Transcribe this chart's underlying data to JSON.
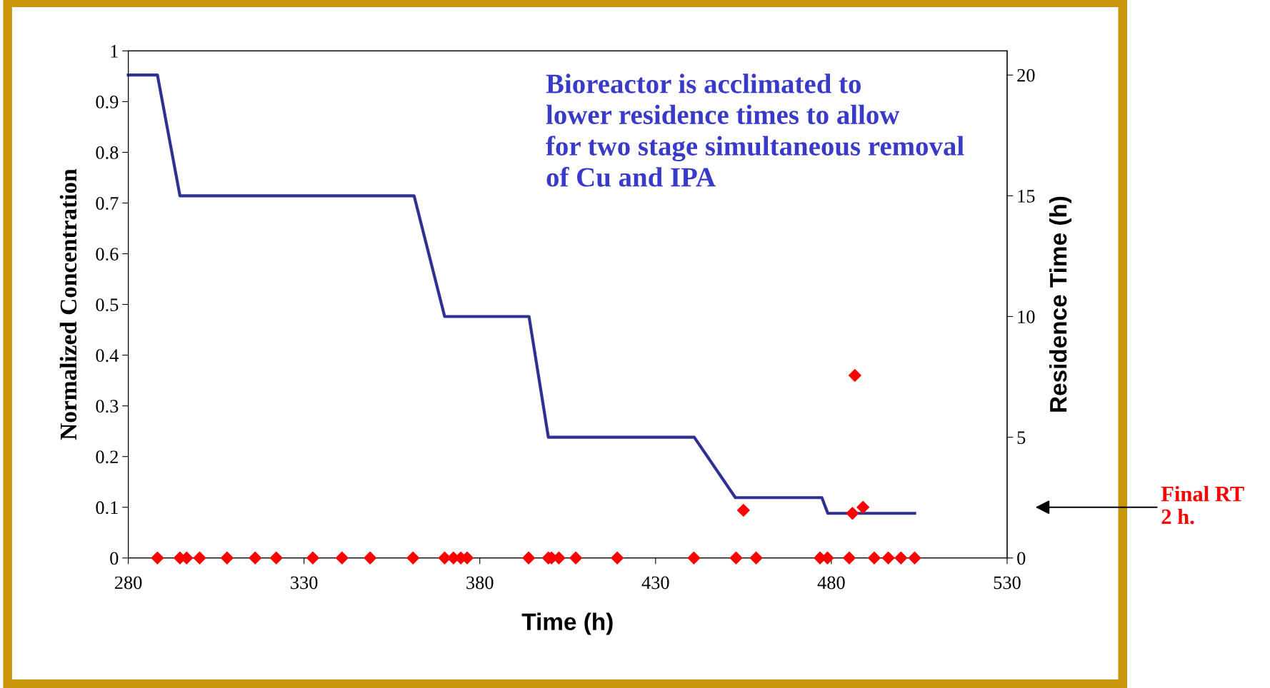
{
  "chart_data": {
    "type": "scatter",
    "xlabel": "Time (h)",
    "ylabel": "Normalized Concentration",
    "y2label": "Residence Time (h)",
    "xlim": [
      280,
      530
    ],
    "xticks": [
      280,
      330,
      380,
      430,
      480,
      530
    ],
    "ylim": [
      0,
      1
    ],
    "yticks": [
      0,
      {
        "value": 0.1,
        "label": "0.1"
      },
      {
        "value": 0.2,
        "label": "0.2"
      },
      {
        "value": 0.3,
        "label": "0.3"
      },
      {
        "value": 0.4,
        "label": "0.4"
      },
      {
        "value": 0.5,
        "label": "0.5"
      },
      {
        "value": 0.6,
        "label": "0.6"
      },
      {
        "value": 0.7,
        "label": "0.7"
      },
      {
        "value": 0.8,
        "label": "0.8"
      },
      {
        "value": 0.9,
        "label": "0.9"
      },
      1
    ],
    "y2lim": [
      0,
      21
    ],
    "y2ticks": [
      0,
      5,
      10,
      15,
      20
    ],
    "grid": false,
    "series": [
      {
        "type": "line",
        "axis": "y2",
        "color": "#2e3192",
        "marker": "none",
        "line_style": "solid",
        "x": [
          280,
          288.3,
          294.7,
          361.3,
          370,
          394,
          399.5,
          441,
          452.7,
          477.3,
          479,
          503.7
        ],
        "values": [
          20,
          20,
          15,
          15,
          10,
          10,
          5,
          5,
          2.5,
          2.5,
          1.85,
          1.85
        ]
      },
      {
        "color": "#ff0000",
        "marker": "diamond",
        "x": [
          288.3,
          294.7,
          296.6,
          300.3,
          308.1,
          316.1,
          322.1,
          332.5,
          340.8,
          348.8,
          361.0,
          370.0,
          372.5,
          374.6,
          376.4,
          393.9,
          399.5,
          400.4,
          402.5,
          407.3,
          419.1,
          440.9,
          452.9,
          458.6,
          476.8,
          478.9,
          485.1,
          492.2,
          496.2,
          499.8,
          503.7,
          455.0,
          486.7,
          486.0,
          489.0
        ],
        "values": [
          0,
          0,
          0,
          0,
          0,
          0,
          0,
          0,
          0,
          0,
          0,
          0,
          0,
          0,
          0,
          0,
          0,
          0,
          0,
          0,
          0,
          0,
          0,
          0,
          0,
          0,
          0,
          0,
          0,
          0,
          0,
          0.094,
          0.36,
          0.088,
          0.1
        ]
      }
    ],
    "annotations": [
      "Bioreactor is acclimated to\nlower residence times to allow\nfor two stage simultaneous removal\nof Cu and IPA",
      "Final RT\n2 h."
    ]
  }
}
